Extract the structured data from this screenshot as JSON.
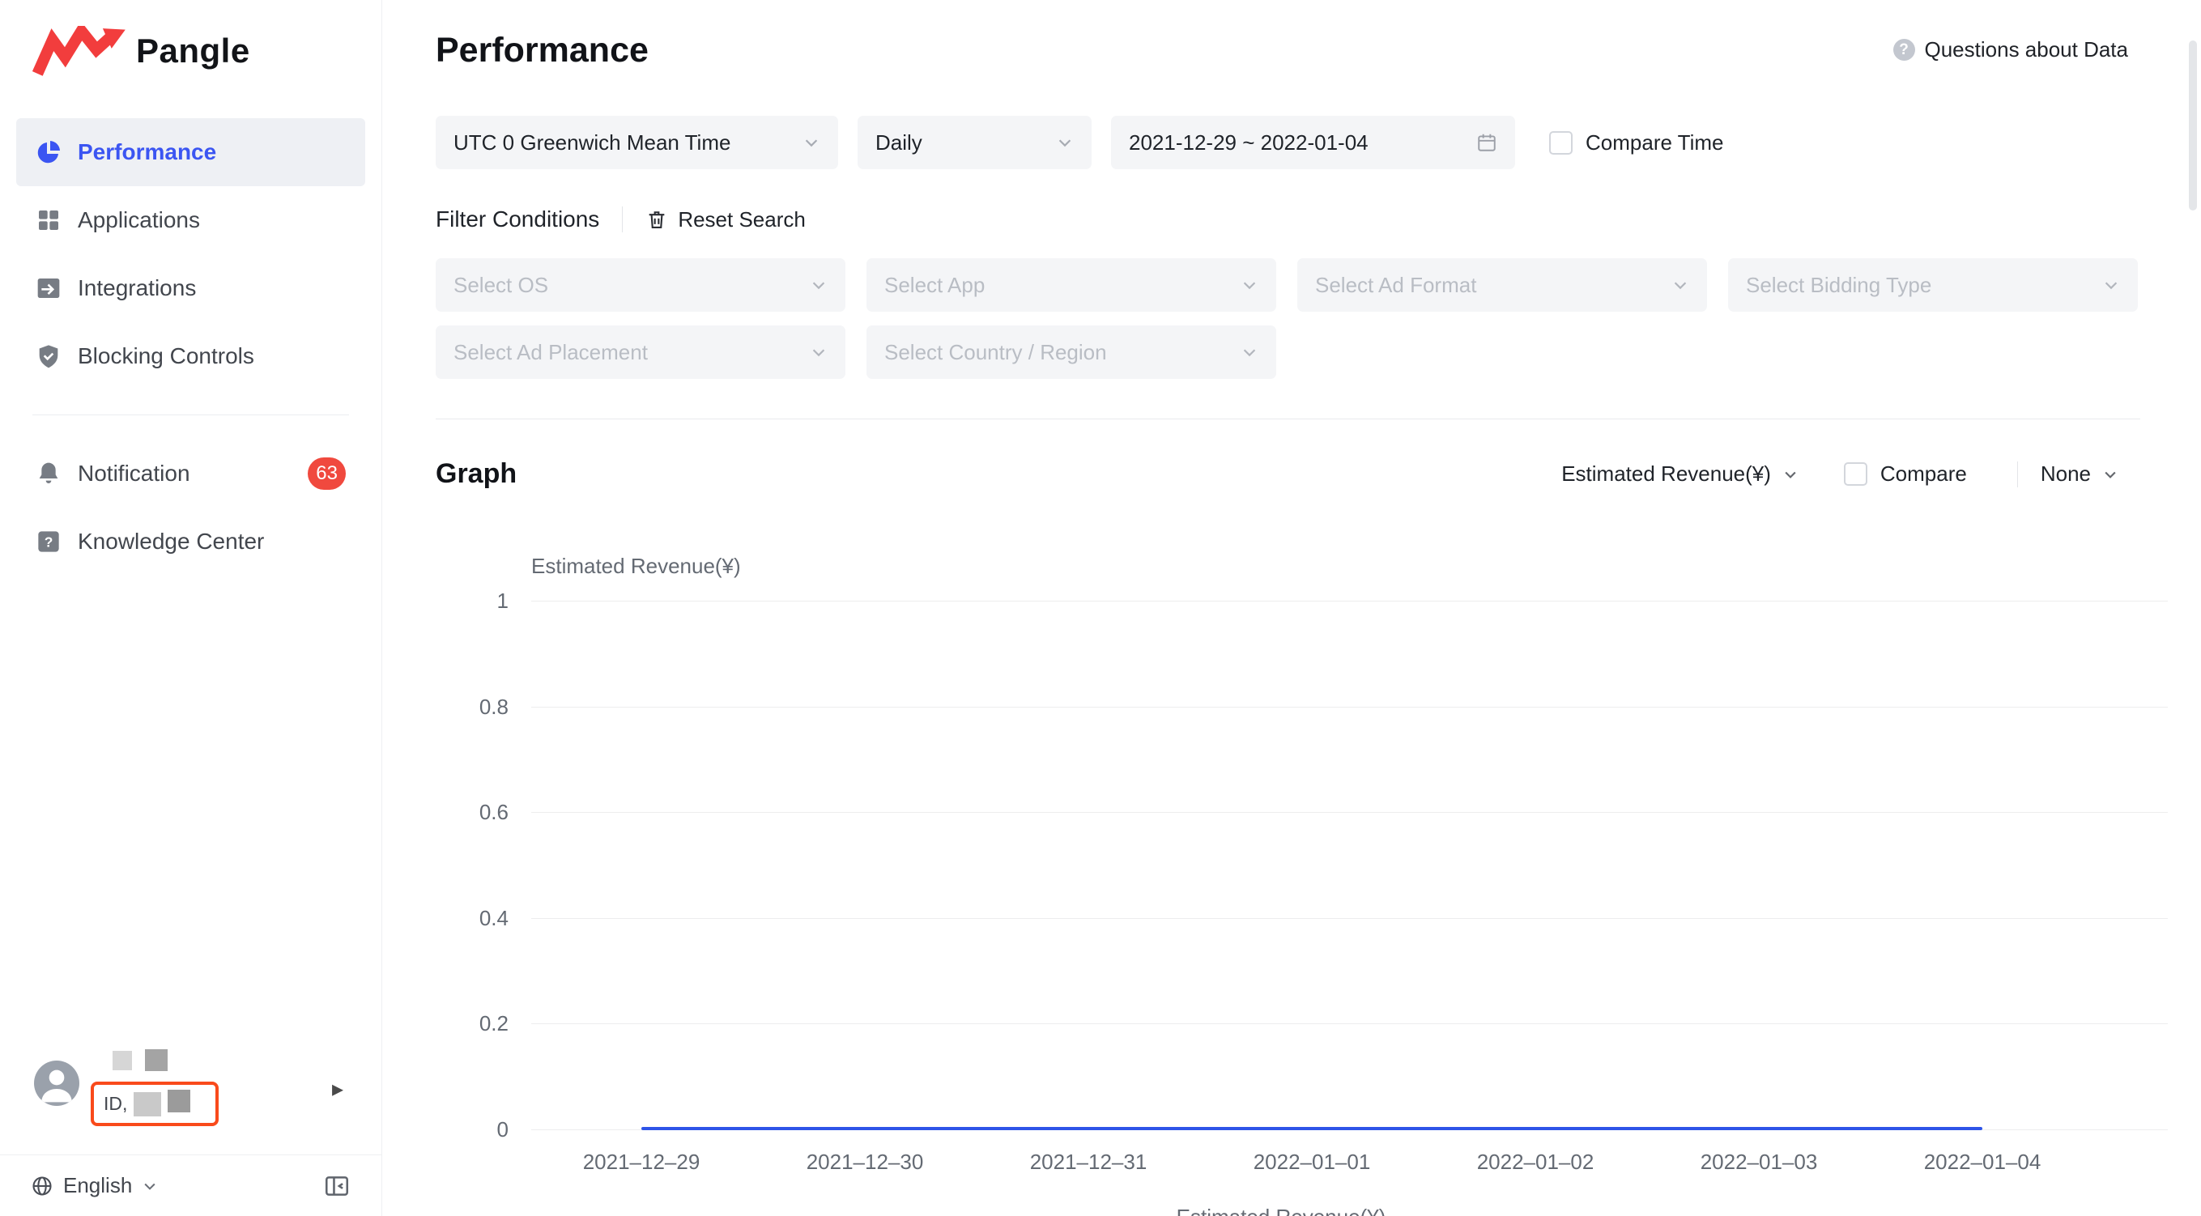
{
  "colors": {
    "accent": "#3b55f2",
    "badge": "#f0493e",
    "annotation": "#f94a1b",
    "chart_line": "#2e54e8"
  },
  "icons": {
    "question_mark": "?",
    "arrow_right": "▸"
  },
  "sidebar": {
    "logo_text": "Pangle",
    "items": [
      {
        "label": "Performance"
      },
      {
        "label": "Applications"
      },
      {
        "label": "Integrations"
      },
      {
        "label": "Blocking Controls"
      }
    ],
    "secondary": [
      {
        "label": "Notification",
        "badge": "63"
      },
      {
        "label": "Knowledge Center"
      }
    ],
    "user": {
      "id_prefix": "ID,"
    },
    "language": "English"
  },
  "header": {
    "title": "Performance",
    "help": "Questions about Data"
  },
  "filters": {
    "timezone": "UTC 0 Greenwich Mean Time",
    "granularity": "Daily",
    "date_range": "2021-12-29 ~ 2022-01-04",
    "compare_time": "Compare Time",
    "conditions_label": "Filter Conditions",
    "reset_label": "Reset Search",
    "selects": [
      "Select OS",
      "Select App",
      "Select Ad Format",
      "Select Bidding Type",
      "Select Ad Placement",
      "Select Country / Region"
    ]
  },
  "graph": {
    "title": "Graph",
    "metric": "Estimated Revenue(¥)",
    "compare": "Compare",
    "secondary": "None"
  },
  "chart_data": {
    "type": "line",
    "title": "Estimated Revenue(¥)",
    "ylabel": "Estimated Revenue(¥)",
    "ylim": [
      0,
      1
    ],
    "yticks": [
      0,
      0.2,
      0.4,
      0.6,
      0.8,
      1
    ],
    "grid": true,
    "x": [
      "2021–12–29",
      "2021–12–30",
      "2021–12–31",
      "2022–01–01",
      "2022–01–02",
      "2022–01–03",
      "2022–01–04"
    ],
    "series": [
      {
        "name": "Estimated Revenue(¥)",
        "values": [
          0,
          0,
          0,
          0,
          0,
          0,
          0
        ]
      }
    ],
    "legend_position": "bottom"
  }
}
